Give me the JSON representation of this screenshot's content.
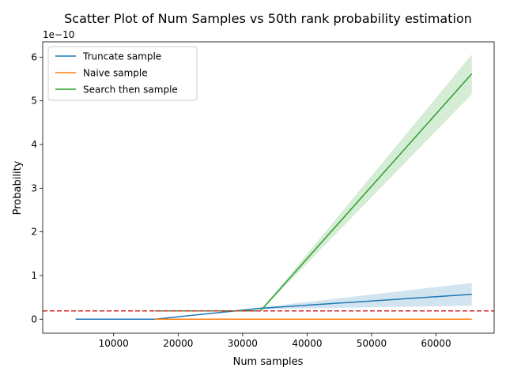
{
  "chart_data": {
    "type": "line",
    "title": "Scatter Plot of Num Samples vs 50th rank probability estimation",
    "xlabel": "Num samples",
    "ylabel": "Probability",
    "y_offset_label": "1e−10",
    "xlim": [
      -1000,
      69000
    ],
    "ylim": [
      -0.32,
      6.35
    ],
    "x_ticks": [
      10000,
      20000,
      30000,
      40000,
      50000,
      60000
    ],
    "y_ticks": [
      0,
      1,
      2,
      3,
      4,
      5,
      6
    ],
    "grid": false,
    "legend_position": "top-left",
    "reference_line": {
      "y": 0.19,
      "color": "#d62728",
      "style": "dashed"
    },
    "series": [
      {
        "name": "Truncate sample",
        "color": "#1f77b4",
        "x": [
          4096,
          8192,
          16384,
          32768,
          65536
        ],
        "y": [
          0.0,
          0.0,
          0.0,
          0.25,
          0.57
        ],
        "lower": [
          0.0,
          0.0,
          0.0,
          0.23,
          0.31
        ],
        "upper": [
          0.0,
          0.0,
          0.0,
          0.27,
          0.83
        ]
      },
      {
        "name": "Naive sample",
        "color": "#ff7f0e",
        "x": [
          16384,
          32768,
          65536
        ],
        "y": [
          0.0,
          0.0,
          0.0
        ],
        "lower": [
          0.0,
          0.0,
          0.0
        ],
        "upper": [
          0.0,
          0.0,
          0.0
        ]
      },
      {
        "name": "Search then sample",
        "color": "#2ca02c",
        "x": [
          16384,
          32768,
          65536
        ],
        "y": [
          0.19,
          0.19,
          5.62
        ],
        "lower": [
          0.18,
          0.18,
          5.15
        ],
        "upper": [
          0.2,
          0.2,
          6.06
        ]
      }
    ]
  }
}
